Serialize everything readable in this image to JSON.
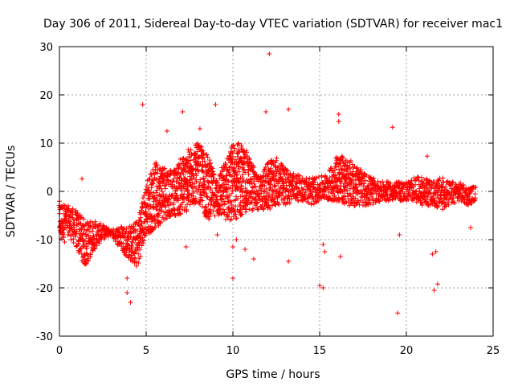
{
  "chart_data": {
    "type": "scatter",
    "title": "Day 306 of 2011, Sidereal Day-to-day VTEC variation (SDTVAR) for receiver mac1",
    "xlabel": "GPS time / hours",
    "ylabel": "SDTVAR / TECUs",
    "xlim": [
      0,
      25
    ],
    "ylim": [
      -30,
      30
    ],
    "xticks": [
      0,
      5,
      10,
      15,
      20,
      25
    ],
    "yticks": [
      -30,
      -20,
      -10,
      0,
      10,
      20,
      30
    ],
    "grid": true,
    "marker": "+",
    "color": "#ff0000",
    "band_x": [
      0,
      0.5,
      1.0,
      1.5,
      2.0,
      2.5,
      3.0,
      3.5,
      4.0,
      4.5,
      5.0,
      5.5,
      6.0,
      6.5,
      7.0,
      7.5,
      8.0,
      8.5,
      9.0,
      9.5,
      10.0,
      10.5,
      11.0,
      11.5,
      12.0,
      12.5,
      13.0,
      13.5,
      14.0,
      14.5,
      15.0,
      15.5,
      16.0,
      16.5,
      17.0,
      17.5,
      18.0,
      18.5,
      19.0,
      19.5,
      20.0,
      20.5,
      21.0,
      21.5,
      22.0,
      22.5,
      23.0,
      23.5,
      24.0
    ],
    "band_low": [
      -10,
      -9,
      -12,
      -16,
      -12,
      -10,
      -9,
      -12,
      -14,
      -16,
      -9,
      -8,
      -6,
      -5,
      -5,
      -4,
      -2,
      -6,
      -5,
      -6,
      -6,
      -5,
      -4,
      -4,
      -4,
      -3,
      -3,
      -2,
      -2,
      -3,
      -2,
      -2,
      -2,
      -3,
      -3,
      -3,
      -3,
      -2,
      -2,
      -2,
      -2,
      -2,
      -3,
      -3,
      -4,
      -3,
      -2,
      -3,
      -2
    ],
    "band_high": [
      -2,
      -3,
      -4,
      -6,
      -6,
      -7,
      -8,
      -7,
      -7,
      -6,
      2,
      6,
      6,
      4,
      7,
      9,
      10,
      8,
      3,
      6,
      10,
      10,
      7,
      3,
      6,
      7,
      5,
      4,
      3,
      3,
      3,
      4,
      8,
      7,
      6,
      4,
      3,
      2,
      2,
      2,
      2,
      3,
      3,
      2,
      3,
      2,
      2,
      1,
      1
    ],
    "outliers": [
      {
        "x": 12.1,
        "y": 28.5
      },
      {
        "x": 4.8,
        "y": 18.0
      },
      {
        "x": 9.0,
        "y": 18.0
      },
      {
        "x": 13.2,
        "y": 17.0
      },
      {
        "x": 7.1,
        "y": 16.5
      },
      {
        "x": 11.9,
        "y": 16.5
      },
      {
        "x": 16.1,
        "y": 16.0
      },
      {
        "x": 19.2,
        "y": 13.3
      },
      {
        "x": 8.1,
        "y": 13.0
      },
      {
        "x": 6.2,
        "y": 12.5
      },
      {
        "x": 16.1,
        "y": 14.5
      },
      {
        "x": 21.2,
        "y": 7.3
      },
      {
        "x": 1.3,
        "y": 2.6
      },
      {
        "x": 10.0,
        "y": -18.0
      },
      {
        "x": 13.2,
        "y": -14.5
      },
      {
        "x": 15.0,
        "y": -19.5
      },
      {
        "x": 15.2,
        "y": -20.0
      },
      {
        "x": 19.5,
        "y": -25.2
      },
      {
        "x": 21.6,
        "y": -20.5
      },
      {
        "x": 21.8,
        "y": -19.2
      },
      {
        "x": 3.9,
        "y": -21.0
      },
      {
        "x": 4.1,
        "y": -23.0
      },
      {
        "x": 3.9,
        "y": -18.0
      },
      {
        "x": 16.2,
        "y": -13.5
      },
      {
        "x": 7.3,
        "y": -11.5
      },
      {
        "x": 9.1,
        "y": -9.0
      },
      {
        "x": 10.0,
        "y": -11.5
      },
      {
        "x": 10.2,
        "y": -10.0
      },
      {
        "x": 19.6,
        "y": -9.0
      },
      {
        "x": 21.5,
        "y": -13.0
      },
      {
        "x": 21.7,
        "y": -12.5
      },
      {
        "x": 23.7,
        "y": -7.5
      },
      {
        "x": 15.3,
        "y": -12.5
      },
      {
        "x": 15.2,
        "y": -11.0
      },
      {
        "x": 2.6,
        "y": -9.5
      },
      {
        "x": 0.1,
        "y": -9.8
      },
      {
        "x": 0.3,
        "y": -10.5
      },
      {
        "x": 11.2,
        "y": -14.0
      },
      {
        "x": 10.7,
        "y": -12.0
      }
    ]
  }
}
